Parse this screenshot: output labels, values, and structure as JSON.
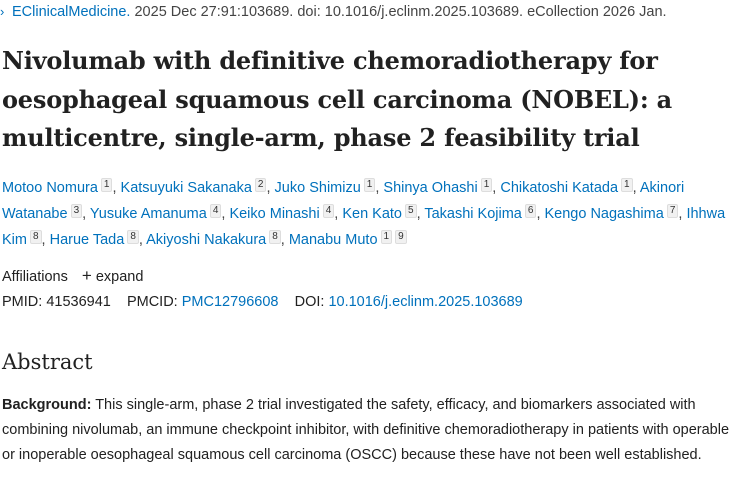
{
  "citation": {
    "journal": "EClinicalMedicine.",
    "rest": " 2025 Dec 27:91:103689. doi: 10.1016/j.eclinm.2025.103689. eCollection 2026 Jan."
  },
  "title": "Nivolumab with definitive chemoradiotherapy for oesophageal squamous cell carcinoma (NOBEL): a multicentre, single-arm, phase 2 feasibility trial",
  "authors": [
    {
      "name": "Motoo Nomura",
      "aff": [
        "1"
      ]
    },
    {
      "name": "Katsuyuki Sakanaka",
      "aff": [
        "2"
      ]
    },
    {
      "name": "Juko Shimizu",
      "aff": [
        "1"
      ]
    },
    {
      "name": "Shinya Ohashi",
      "aff": [
        "1"
      ]
    },
    {
      "name": "Chikatoshi Katada",
      "aff": [
        "1"
      ]
    },
    {
      "name": "Akinori Watanabe",
      "aff": [
        "3"
      ]
    },
    {
      "name": "Yusuke Amanuma",
      "aff": [
        "4"
      ]
    },
    {
      "name": "Keiko Minashi",
      "aff": [
        "4"
      ]
    },
    {
      "name": "Ken Kato",
      "aff": [
        "5"
      ]
    },
    {
      "name": "Takashi Kojima",
      "aff": [
        "6"
      ]
    },
    {
      "name": "Kengo Nagashima",
      "aff": [
        "7"
      ]
    },
    {
      "name": "Ihhwa Kim",
      "aff": [
        "8"
      ]
    },
    {
      "name": "Harue Tada",
      "aff": [
        "8"
      ]
    },
    {
      "name": "Akiyoshi Nakakura",
      "aff": [
        "8"
      ]
    },
    {
      "name": "Manabu Muto",
      "aff": [
        "1",
        "9"
      ]
    }
  ],
  "affiliations": {
    "label": "Affiliations",
    "expand_icon": "+",
    "expand": "expand"
  },
  "ids": {
    "pmid_label": "PMID:",
    "pmid": "41536941",
    "pmcid_label": "PMCID:",
    "pmcid": "PMC12796608",
    "doi_label": "DOI:",
    "doi": "10.1016/j.eclinm.2025.103689"
  },
  "abstract": {
    "heading": "Abstract",
    "background_label": "Background:",
    "background_text": " This single-arm, phase 2 trial investigated the safety, efficacy, and biomarkers associated with combining nivolumab, an immune checkpoint inhibitor, with definitive chemoradiotherapy in patients with operable or inoperable oesophageal squamous cell carcinoma (OSCC) because these have not been well established."
  }
}
